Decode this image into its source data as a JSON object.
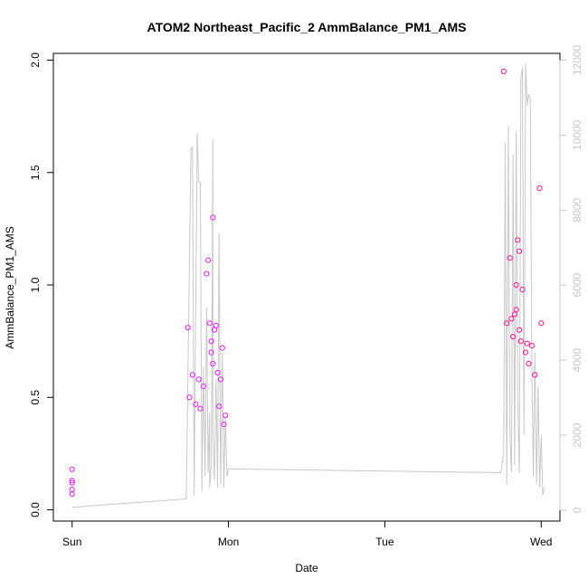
{
  "chart_data": {
    "type": "scatter",
    "title": "ATOM2 Northeast_Pacific_2 AmmBalance_PM1_AMS",
    "xlabel": "Date",
    "ylabel": "AmmBalance_PM1_AMS",
    "x_ticks": [
      "Sun",
      "Mon",
      "Tue",
      "Wed"
    ],
    "x_tick_pos": [
      0,
      1,
      2,
      3
    ],
    "xlim": [
      -0.12,
      3.12
    ],
    "ylim": [
      -0.05,
      2.03
    ],
    "y_ticks": [
      "0.0",
      "0.5",
      "1.0",
      "1.5",
      "2.0"
    ],
    "y2_ticks": [
      "0",
      "2000",
      "4000",
      "6000",
      "8000",
      "10000",
      "12000"
    ],
    "y2lim": [
      -290,
      12180
    ],
    "grid": false,
    "colors": {
      "early_points": "#e81cff",
      "late_points": "#ff1493",
      "line": "#c8c8c8",
      "right_axis": "#c8c8c8"
    },
    "point_series": [
      {
        "x": [
          0.0,
          0.0,
          0.0,
          0.0,
          0.0
        ],
        "y": [
          0.18,
          0.13,
          0.12,
          0.09,
          0.07
        ]
      },
      {
        "x": [
          0.74,
          0.75,
          0.77,
          0.79,
          0.81,
          0.82,
          0.84,
          0.86,
          0.87,
          0.88,
          0.89,
          0.89,
          0.9,
          0.9,
          0.91,
          0.92,
          0.93,
          0.94,
          0.95,
          0.96,
          0.97,
          0.98
        ],
        "y": [
          0.81,
          0.5,
          0.6,
          0.47,
          0.58,
          0.45,
          0.55,
          1.05,
          1.11,
          0.83,
          0.75,
          0.7,
          1.3,
          0.65,
          0.8,
          0.82,
          0.61,
          0.46,
          0.58,
          0.72,
          0.38,
          0.42
        ]
      },
      {
        "x": [
          2.76,
          2.78,
          2.8,
          2.81,
          2.82,
          2.83,
          2.84,
          2.84,
          2.85,
          2.86,
          2.86,
          2.87,
          2.88,
          2.9,
          2.91,
          2.92,
          2.94,
          2.96,
          2.99,
          3.0
        ],
        "y": [
          1.95,
          0.83,
          1.12,
          0.85,
          0.77,
          0.87,
          0.89,
          1.0,
          1.2,
          1.15,
          0.8,
          0.75,
          0.98,
          0.7,
          0.74,
          0.65,
          0.73,
          0.6,
          1.43,
          0.83
        ]
      }
    ],
    "line_series": {
      "x": [
        0.0,
        0.73,
        0.76,
        0.77,
        0.78,
        0.8,
        0.81,
        0.82,
        0.83,
        0.84,
        0.85,
        0.86,
        0.87,
        0.88,
        0.88,
        0.89,
        0.9,
        0.9,
        0.91,
        0.92,
        0.93,
        0.94,
        0.95,
        0.96,
        0.97,
        0.98,
        0.99,
        1.0,
        2.74,
        2.76,
        2.77,
        2.78,
        2.79,
        2.8,
        2.81,
        2.82,
        2.83,
        2.84,
        2.85,
        2.86,
        2.87,
        2.88,
        2.89,
        2.9,
        2.91,
        2.92,
        2.93,
        2.94,
        2.95,
        2.96,
        2.97,
        2.98,
        2.99,
        3.0,
        3.01,
        3.02
      ],
      "y": [
        80,
        300,
        9630,
        9680,
        400,
        10060,
        8750,
        8720,
        500,
        3800,
        900,
        5400,
        1000,
        2600,
        600,
        1200,
        9880,
        2100,
        800,
        3500,
        600,
        7380,
        700,
        4200,
        600,
        2500,
        900,
        1100,
        1000,
        1500,
        9800,
        700,
        10250,
        2000,
        1000,
        9500,
        1200,
        10100,
        3000,
        1000,
        11500,
        11800,
        2000,
        11900,
        10800,
        11100,
        10950,
        3800,
        900,
        4200,
        700,
        3300,
        600,
        2000,
        400,
        600
      ],
      "note_unused": ""
    }
  }
}
